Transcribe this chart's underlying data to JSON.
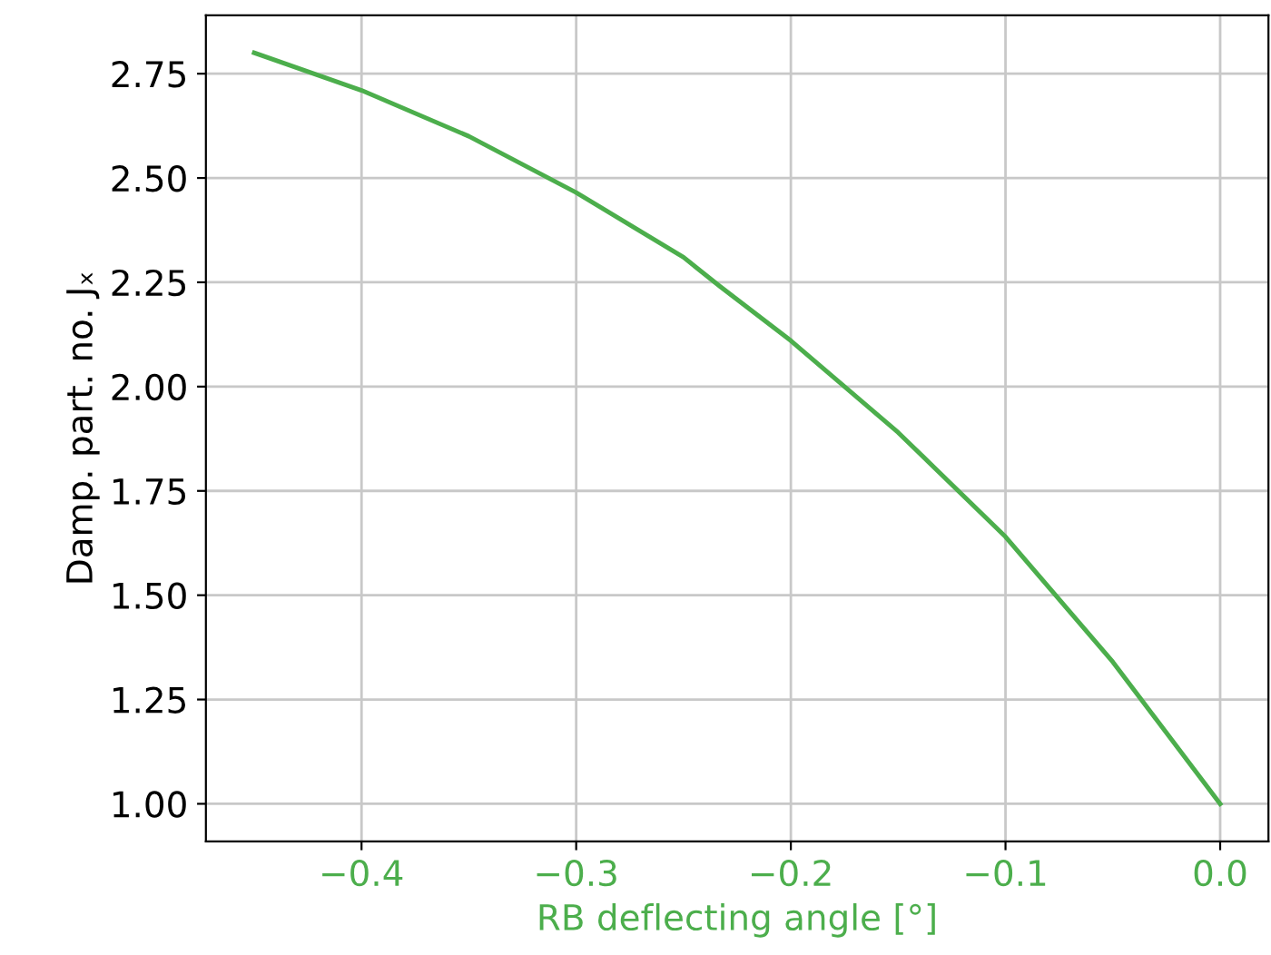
{
  "chart_data": {
    "type": "line",
    "xlabel": "RB deflecting angle [°]",
    "ylabel": "Damp. part. no. Jₓ",
    "series": [
      {
        "color": "#4cae4c",
        "x": [
          -0.45,
          -0.4,
          -0.35,
          -0.3,
          -0.25,
          -0.233,
          -0.2,
          -0.15,
          -0.1,
          -0.05,
          0.0
        ],
        "values": [
          2.8,
          2.71,
          2.6,
          2.465,
          2.31,
          2.24,
          2.11,
          1.89,
          1.64,
          1.34,
          1.0
        ]
      }
    ],
    "xlim": [
      -0.4725,
      0.0225
    ],
    "xticks": [
      {
        "value": -0.4,
        "label": "−0.4"
      },
      {
        "value": -0.3,
        "label": "−0.3"
      },
      {
        "value": -0.2,
        "label": "−0.2"
      },
      {
        "value": -0.1,
        "label": "−0.1"
      },
      {
        "value": 0.0,
        "label": "0.0"
      }
    ],
    "ylim": [
      0.91,
      2.89
    ],
    "yticks": [
      {
        "value": 1.0,
        "label": "1.00"
      },
      {
        "value": 1.25,
        "label": "1.25"
      },
      {
        "value": 1.5,
        "label": "1.50"
      },
      {
        "value": 1.75,
        "label": "1.75"
      },
      {
        "value": 2.0,
        "label": "2.00"
      },
      {
        "value": 2.25,
        "label": "2.25"
      },
      {
        "value": 2.5,
        "label": "2.50"
      },
      {
        "value": 2.75,
        "label": "2.75"
      }
    ],
    "grid": true,
    "marker": "none",
    "line_style": "solid"
  }
}
